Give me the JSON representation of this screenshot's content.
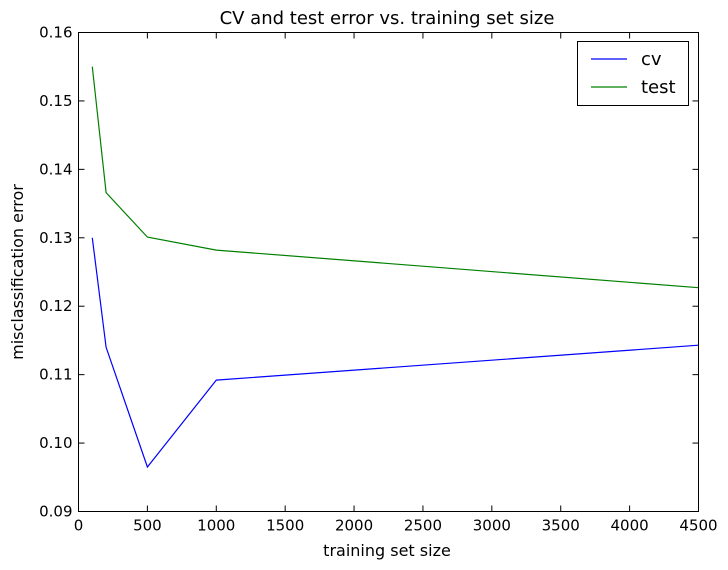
{
  "chart_data": {
    "type": "line",
    "title": "CV and test error vs. training set size",
    "xlabel": "training set size",
    "ylabel": "misclassification error",
    "xlim": [
      0,
      4500
    ],
    "ylim": [
      0.09,
      0.16
    ],
    "x_ticks": [
      "0",
      "500",
      "1000",
      "1500",
      "2000",
      "2500",
      "3000",
      "3500",
      "4000",
      "4500"
    ],
    "y_ticks": [
      "0.09",
      "0.10",
      "0.11",
      "0.12",
      "0.13",
      "0.14",
      "0.15",
      "0.16"
    ],
    "grid": false,
    "legend_position": "top-right",
    "series": [
      {
        "name": "cv",
        "color": "#0000ff",
        "x": [
          100,
          200,
          500,
          1000,
          4500
        ],
        "values": [
          0.13,
          0.114,
          0.0965,
          0.1092,
          0.1143
        ]
      },
      {
        "name": "test",
        "color": "#008000",
        "x": [
          100,
          200,
          500,
          1000,
          4500
        ],
        "values": [
          0.155,
          0.1366,
          0.1301,
          0.1282,
          0.1227
        ]
      }
    ]
  }
}
